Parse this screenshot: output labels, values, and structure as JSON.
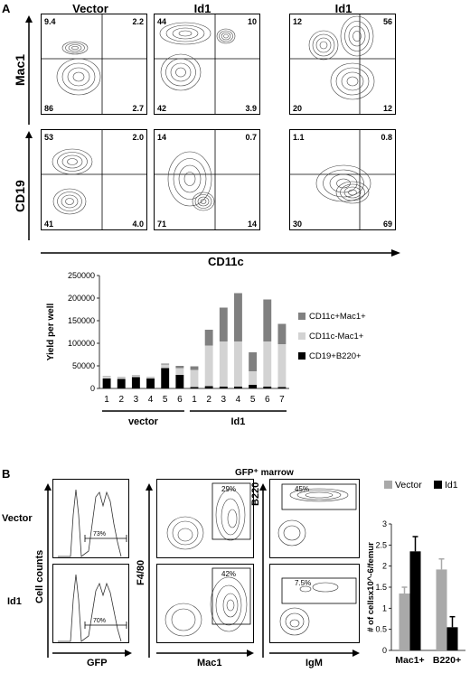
{
  "panelA": {
    "label": "A",
    "col_titles": [
      "Vector",
      "Id1",
      "Id1"
    ],
    "row_labels": [
      "Mac1",
      "CD19"
    ],
    "x_axis_label": "CD11c",
    "flow_quadrants": [
      [
        {
          "tl": "9.4",
          "tr": "2.2",
          "bl": "86",
          "br": "2.7"
        },
        {
          "tl": "44",
          "tr": "10",
          "bl": "42",
          "br": "3.9"
        },
        {
          "tl": "12",
          "tr": "56",
          "bl": "20",
          "br": "12"
        }
      ],
      [
        {
          "tl": "53",
          "tr": "2.0",
          "bl": "41",
          "br": "4.0"
        },
        {
          "tl": "14",
          "tr": "0.7",
          "bl": "71",
          "br": "14"
        },
        {
          "tl": "1.1",
          "tr": "0.8",
          "bl": "30",
          "br": "69"
        }
      ]
    ]
  },
  "chart_data": [
    {
      "type": "bar",
      "stacked": true,
      "ylabel": "Yield per well",
      "ylim": [
        0,
        250000
      ],
      "yticks": [
        "0",
        "50000",
        "100000",
        "150000",
        "200000",
        "250000"
      ],
      "categories": [
        "1",
        "2",
        "3",
        "4",
        "5",
        "6",
        "1",
        "2",
        "3",
        "4",
        "5",
        "6",
        "7"
      ],
      "groups": [
        {
          "name": "vector",
          "count": 6
        },
        {
          "name": "Id1",
          "count": 7
        }
      ],
      "series": [
        {
          "name": "CD19+B220+",
          "color": "#000000",
          "values": [
            22000,
            21000,
            25000,
            22000,
            45000,
            30000,
            3000,
            5000,
            4000,
            4000,
            8000,
            4000,
            3000
          ]
        },
        {
          "name": "CD11c-Mac1+",
          "color": "#d3d3d3",
          "values": [
            4000,
            3000,
            3000,
            2000,
            8000,
            15000,
            38000,
            90000,
            100000,
            100000,
            30000,
            100000,
            95000
          ]
        },
        {
          "name": "CD11c+Mac1+",
          "color": "#808080",
          "values": [
            1000,
            1000,
            1000,
            1000,
            2000,
            5000,
            8000,
            35000,
            75000,
            107000,
            42000,
            93000,
            45000
          ]
        }
      ],
      "legend_order": [
        "CD11c+Mac1+",
        "CD11c-Mac1+",
        "CD19+B220+"
      ]
    },
    {
      "type": "bar",
      "ylabel": "# of cellsx10^-6/femur",
      "ylim": [
        0,
        3
      ],
      "yticks": [
        "0",
        "0.5",
        "1",
        "1.5",
        "2",
        "2.5",
        "3"
      ],
      "categories": [
        "Mac1+",
        "B220+"
      ],
      "series": [
        {
          "name": "Vector",
          "color": "#a9a9a9",
          "values": [
            1.35,
            1.92
          ],
          "errors": [
            0.15,
            0.25
          ]
        },
        {
          "name": "Id1",
          "color": "#000000",
          "values": [
            2.35,
            0.55
          ],
          "errors": [
            0.35,
            0.25
          ]
        }
      ]
    }
  ],
  "panelB": {
    "label": "B",
    "row_labels": [
      "Vector",
      "Id1"
    ],
    "hist_ylabel": "Cell counts",
    "hist_xlabel": "GFP",
    "hist_pcts": [
      "73%",
      "70%"
    ],
    "gfp_title": "GFP⁺ marrow",
    "f480_label": "F4/80",
    "mac1_label": "Mac1",
    "b220_label": "B220",
    "igm_label": "IgM",
    "f480_pcts": [
      "29%",
      "42%"
    ],
    "b220_pcts": [
      "45%",
      "7.5%"
    ]
  }
}
